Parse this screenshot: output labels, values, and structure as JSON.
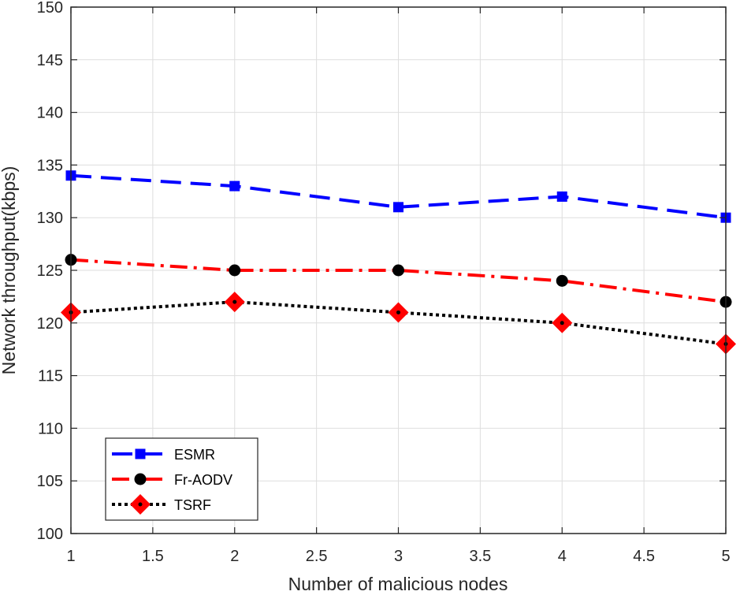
{
  "chart_data": {
    "type": "line",
    "xlabel": "Number of malicious nodes",
    "ylabel": "Network throughput(kbps)",
    "xlim": [
      1,
      5
    ],
    "ylim": [
      100,
      150
    ],
    "xticks": [
      1,
      1.5,
      2,
      2.5,
      3,
      3.5,
      4,
      4.5,
      5
    ],
    "xtick_labels": [
      "1",
      "1.5",
      "2",
      "2.5",
      "3",
      "3.5",
      "4",
      "4.5",
      "5"
    ],
    "yticks": [
      100,
      105,
      110,
      115,
      120,
      125,
      130,
      135,
      140,
      145,
      150
    ],
    "ytick_labels": [
      "100",
      "105",
      "110",
      "115",
      "120",
      "125",
      "130",
      "135",
      "140",
      "145",
      "150"
    ],
    "grid": true,
    "legend_position": "bottom-left",
    "x": [
      1,
      2,
      3,
      4,
      5
    ],
    "series": [
      {
        "name": "ESMR",
        "values": [
          134,
          133,
          131,
          132,
          130
        ],
        "color": "#0000ff",
        "line_style": "dashed",
        "marker": "square",
        "marker_color": "#0000ff"
      },
      {
        "name": "Fr-AODV",
        "values": [
          126,
          125,
          125,
          124,
          122
        ],
        "color": "#ff0000",
        "line_style": "dash-dot",
        "marker": "circle",
        "marker_color": "#000000"
      },
      {
        "name": "TSRF",
        "values": [
          121,
          122,
          121,
          120,
          118
        ],
        "color": "#000000",
        "line_style": "dotted",
        "marker": "diamond",
        "marker_color": "#ff0000"
      }
    ]
  }
}
